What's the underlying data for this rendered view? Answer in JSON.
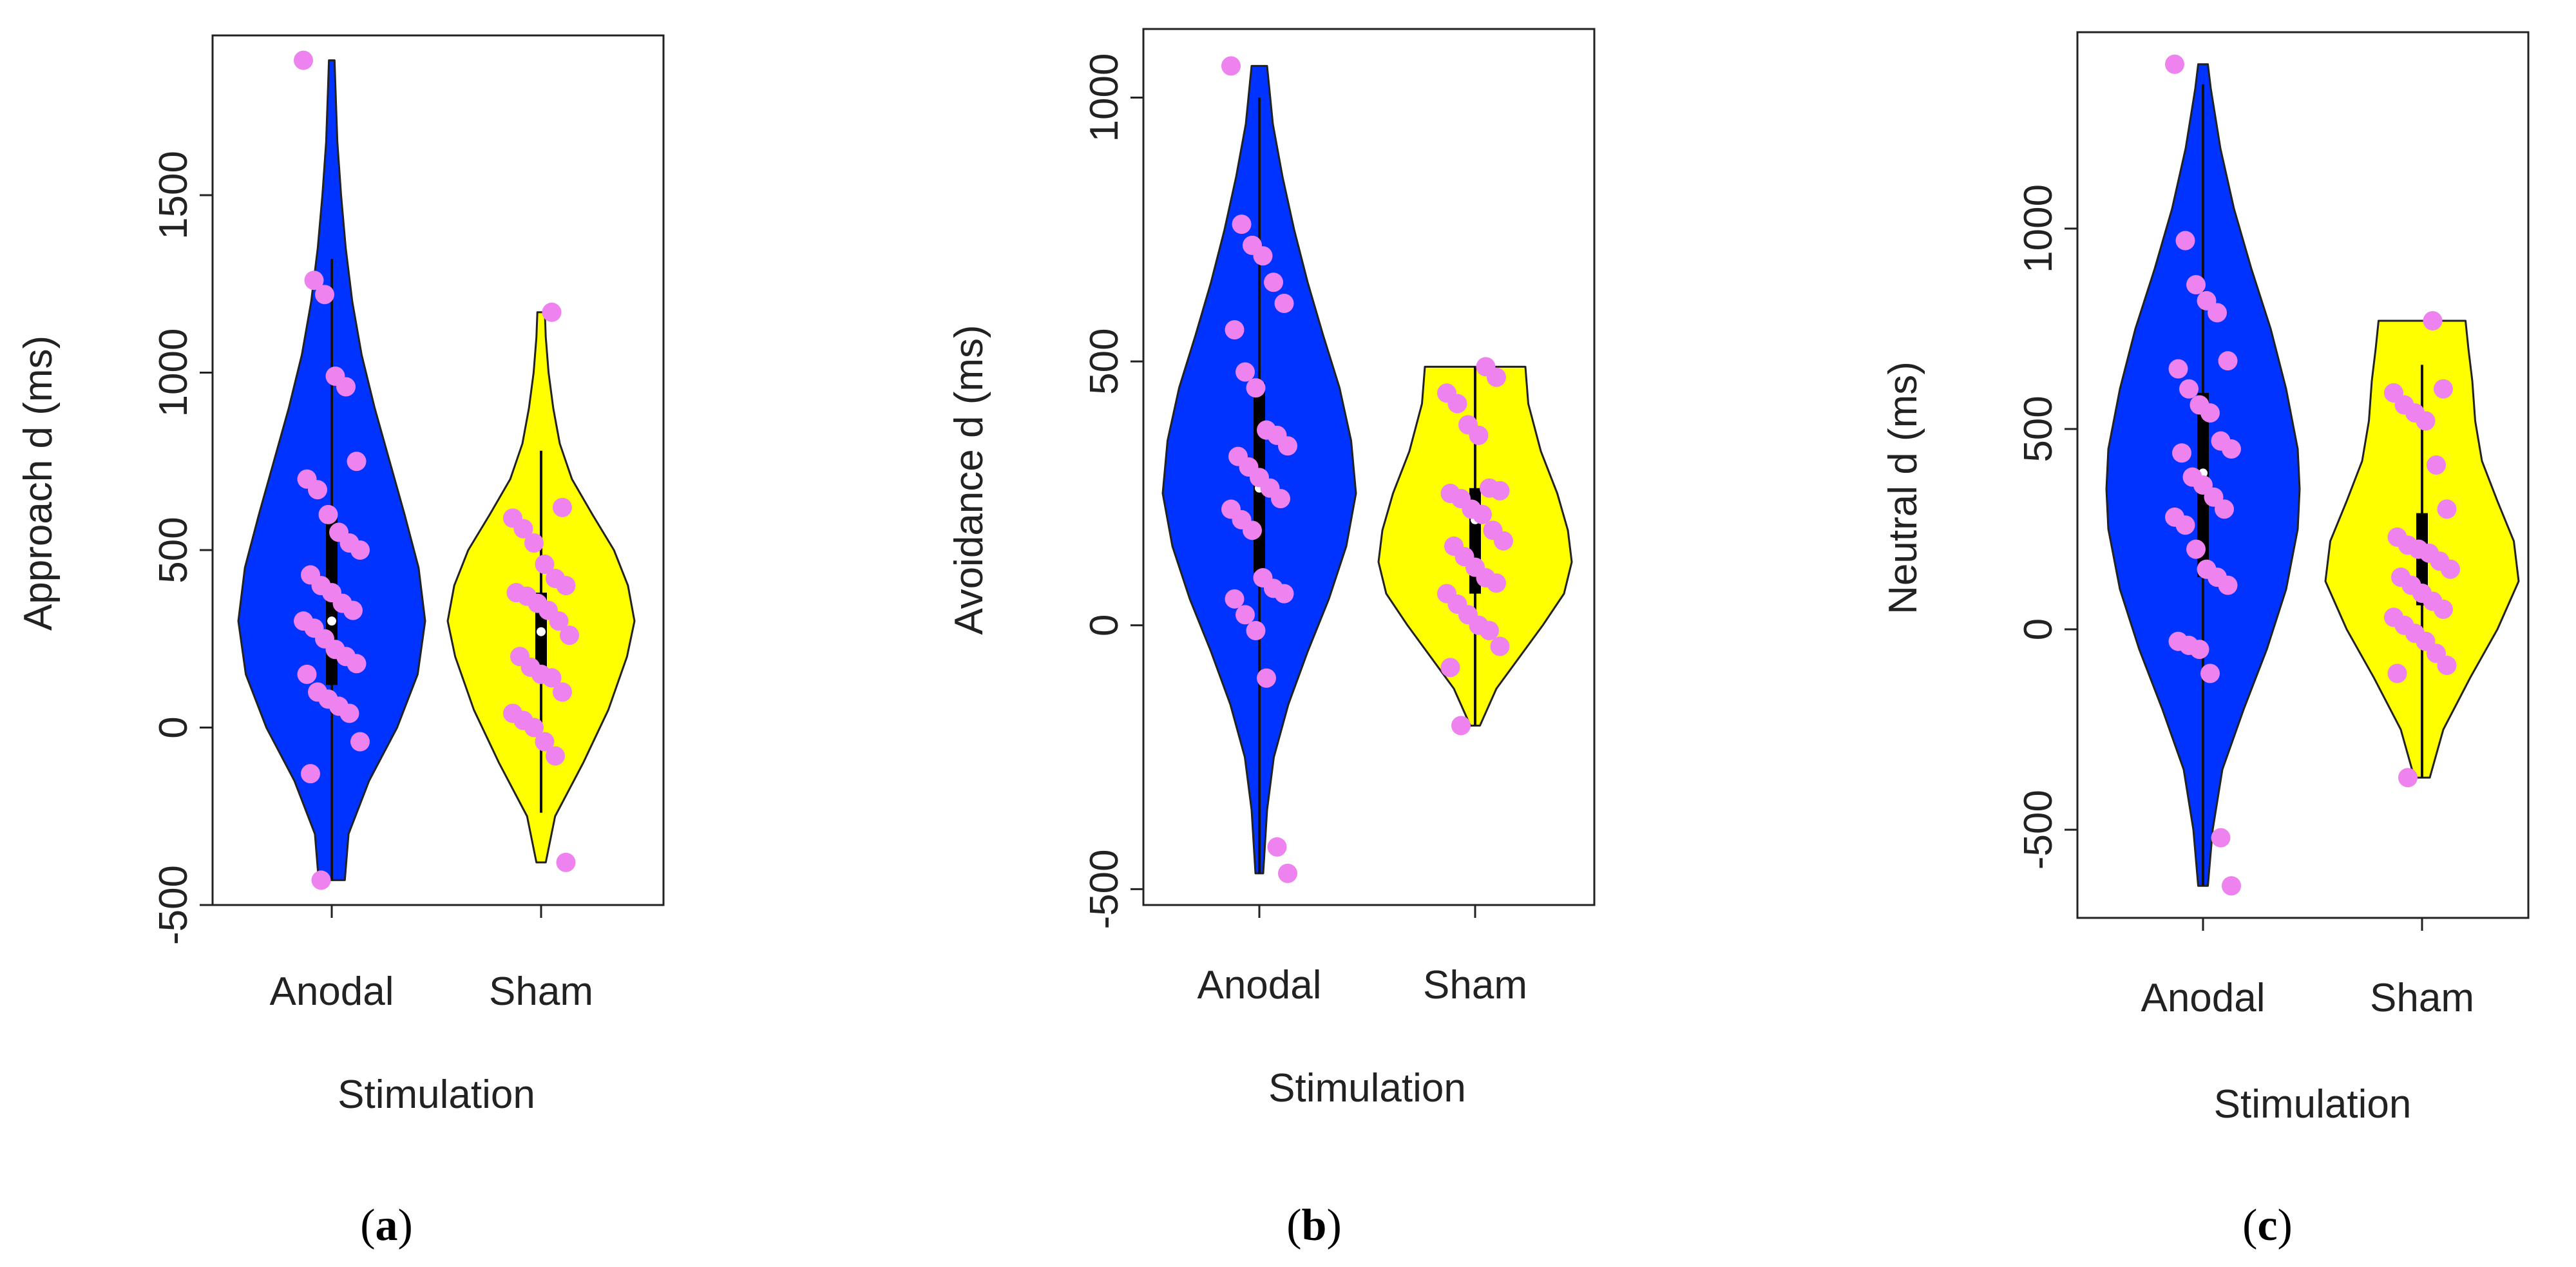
{
  "figure": {
    "title": ""
  },
  "chart_data": [
    {
      "type": "violin",
      "panel": "(a)",
      "panel_letter": "a",
      "xlabel": "Stimulation",
      "ylabel": "Approach d (ms)",
      "categories": [
        "Anodal",
        "Sham"
      ],
      "ylim": [
        -500,
        1950
      ],
      "yticks": [
        -500,
        0,
        500,
        1000,
        1500
      ],
      "colors": {
        "Anodal": "#0033ff",
        "Sham": "#ffff00",
        "points": "#ee82ee"
      },
      "groups": [
        {
          "name": "Anodal",
          "min": -430,
          "max": 1880,
          "q1": 120,
          "median": 300,
          "q3": 600,
          "whisker_low": -430,
          "whisker_high": 1320,
          "density": [
            [
              -430,
              0.14
            ],
            [
              -300,
              0.18
            ],
            [
              -150,
              0.4
            ],
            [
              0,
              0.7
            ],
            [
              150,
              0.92
            ],
            [
              300,
              1.0
            ],
            [
              450,
              0.93
            ],
            [
              600,
              0.78
            ],
            [
              750,
              0.62
            ],
            [
              900,
              0.46
            ],
            [
              1050,
              0.32
            ],
            [
              1200,
              0.22
            ],
            [
              1350,
              0.15
            ],
            [
              1500,
              0.1
            ],
            [
              1650,
              0.06
            ],
            [
              1800,
              0.04
            ],
            [
              1880,
              0.03
            ]
          ],
          "points": [
            1880,
            1260,
            1220,
            990,
            960,
            750,
            700,
            670,
            600,
            550,
            520,
            500,
            430,
            400,
            380,
            350,
            330,
            300,
            280,
            250,
            220,
            200,
            180,
            150,
            100,
            80,
            60,
            40,
            -40,
            -130,
            -430
          ]
        },
        {
          "name": "Sham",
          "min": -380,
          "max": 1170,
          "q1": 150,
          "median": 270,
          "q3": 380,
          "whisker_low": -240,
          "whisker_high": 780,
          "density": [
            [
              -380,
              0.05
            ],
            [
              -250,
              0.15
            ],
            [
              -100,
              0.45
            ],
            [
              50,
              0.72
            ],
            [
              200,
              0.92
            ],
            [
              300,
              1.0
            ],
            [
              400,
              0.93
            ],
            [
              500,
              0.78
            ],
            [
              600,
              0.55
            ],
            [
              700,
              0.33
            ],
            [
              800,
              0.2
            ],
            [
              900,
              0.13
            ],
            [
              1000,
              0.08
            ],
            [
              1100,
              0.05
            ],
            [
              1170,
              0.04
            ]
          ],
          "points": [
            1170,
            620,
            590,
            560,
            520,
            460,
            420,
            400,
            380,
            370,
            350,
            330,
            300,
            260,
            200,
            170,
            150,
            140,
            100,
            40,
            20,
            0,
            -40,
            -80,
            -380
          ]
        }
      ]
    },
    {
      "type": "violin",
      "panel": "(b)",
      "panel_letter": "b",
      "xlabel": "Stimulation",
      "ylabel": "Avoidance d (ms)",
      "categories": [
        "Anodal",
        "Sham"
      ],
      "ylim": [
        -530,
        1130
      ],
      "yticks": [
        -500,
        0,
        500,
        1000
      ],
      "colors": {
        "Anodal": "#0033ff",
        "Sham": "#ffff00",
        "points": "#ee82ee"
      },
      "groups": [
        {
          "name": "Anodal",
          "min": -470,
          "max": 1060,
          "q1": 100,
          "median": 260,
          "q3": 460,
          "whisker_low": -470,
          "whisker_high": 1000,
          "density": [
            [
              -470,
              0.04
            ],
            [
              -350,
              0.08
            ],
            [
              -250,
              0.15
            ],
            [
              -150,
              0.3
            ],
            [
              -50,
              0.5
            ],
            [
              50,
              0.72
            ],
            [
              150,
              0.9
            ],
            [
              250,
              1.0
            ],
            [
              350,
              0.95
            ],
            [
              450,
              0.83
            ],
            [
              550,
              0.66
            ],
            [
              650,
              0.5
            ],
            [
              750,
              0.36
            ],
            [
              850,
              0.24
            ],
            [
              950,
              0.14
            ],
            [
              1060,
              0.08
            ]
          ],
          "points": [
            1060,
            760,
            720,
            700,
            650,
            610,
            560,
            480,
            450,
            370,
            360,
            340,
            320,
            300,
            280,
            260,
            240,
            220,
            200,
            180,
            90,
            70,
            60,
            50,
            20,
            -10,
            -100,
            -420,
            -470
          ]
        },
        {
          "name": "Sham",
          "min": -190,
          "max": 490,
          "q1": 60,
          "median": 200,
          "q3": 260,
          "whisker_low": -190,
          "whisker_high": 490,
          "density": [
            [
              -190,
              0.05
            ],
            [
              -120,
              0.22
            ],
            [
              -50,
              0.5
            ],
            [
              0,
              0.7
            ],
            [
              60,
              0.92
            ],
            [
              120,
              1.0
            ],
            [
              180,
              0.96
            ],
            [
              250,
              0.85
            ],
            [
              330,
              0.68
            ],
            [
              420,
              0.55
            ],
            [
              490,
              0.52
            ]
          ],
          "points": [
            490,
            470,
            440,
            420,
            380,
            360,
            260,
            255,
            250,
            240,
            220,
            210,
            180,
            160,
            150,
            130,
            110,
            90,
            80,
            60,
            40,
            20,
            0,
            -10,
            -40,
            -80,
            -190
          ]
        }
      ]
    },
    {
      "type": "violin",
      "panel": "(c)",
      "panel_letter": "c",
      "xlabel": "Stimulation",
      "ylabel": "Neutral d (ms)",
      "categories": [
        "Anodal",
        "Sham"
      ],
      "ylim": [
        -720,
        1490
      ],
      "yticks": [
        -500,
        0,
        500,
        1000
      ],
      "colors": {
        "Anodal": "#0033ff",
        "Sham": "#ffff00",
        "points": "#ee82ee"
      },
      "groups": [
        {
          "name": "Anodal",
          "min": -640,
          "max": 1410,
          "q1": 130,
          "median": 390,
          "q3": 590,
          "whisker_low": -640,
          "whisker_high": 1360,
          "density": [
            [
              -640,
              0.05
            ],
            [
              -500,
              0.1
            ],
            [
              -350,
              0.2
            ],
            [
              -200,
              0.42
            ],
            [
              -50,
              0.66
            ],
            [
              100,
              0.86
            ],
            [
              250,
              0.98
            ],
            [
              350,
              1.0
            ],
            [
              450,
              0.98
            ],
            [
              600,
              0.86
            ],
            [
              750,
              0.7
            ],
            [
              900,
              0.5
            ],
            [
              1050,
              0.32
            ],
            [
              1200,
              0.18
            ],
            [
              1350,
              0.08
            ],
            [
              1410,
              0.05
            ]
          ],
          "points": [
            1410,
            970,
            860,
            820,
            790,
            670,
            650,
            600,
            560,
            540,
            470,
            450,
            440,
            380,
            360,
            330,
            300,
            280,
            260,
            200,
            150,
            130,
            110,
            -30,
            -40,
            -50,
            -110,
            -520,
            -640
          ]
        },
        {
          "name": "Sham",
          "min": -370,
          "max": 770,
          "q1": 60,
          "median": 200,
          "q3": 290,
          "whisker_low": -370,
          "whisker_high": 660,
          "density": [
            [
              -370,
              0.08
            ],
            [
              -250,
              0.22
            ],
            [
              -120,
              0.5
            ],
            [
              0,
              0.78
            ],
            [
              120,
              1.0
            ],
            [
              220,
              0.95
            ],
            [
              320,
              0.78
            ],
            [
              420,
              0.62
            ],
            [
              520,
              0.55
            ],
            [
              620,
              0.52
            ],
            [
              700,
              0.48
            ],
            [
              770,
              0.45
            ]
          ],
          "points": [
            770,
            600,
            590,
            560,
            540,
            520,
            410,
            300,
            230,
            210,
            200,
            190,
            170,
            150,
            130,
            110,
            90,
            70,
            50,
            30,
            10,
            -10,
            -30,
            -60,
            -90,
            -110,
            -370
          ]
        }
      ]
    }
  ]
}
